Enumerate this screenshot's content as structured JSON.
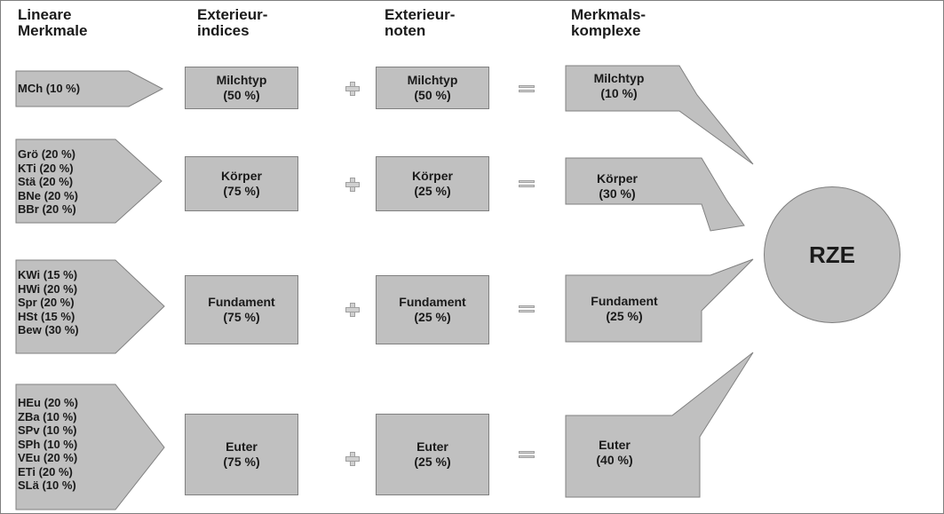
{
  "headers": {
    "lineare_merkmale": "Lineare\nMerkmale",
    "exterieur_indices": "Exterieur-\nindices",
    "exterieur_noten": "Exterieur-\nnoten",
    "merkmals_komplexe": "Merkmals-\nkomplexe"
  },
  "rows": [
    {
      "features": "MCh (10 %)",
      "index": "Milchtyp\n(50 %)",
      "note": "Milchtyp\n(50 %)",
      "complex": "Milchtyp\n(10 %)"
    },
    {
      "features": "Grö  (20 %)\nKTi   (20 %)\nStä   (20 %)\nBNe (20 %)\nBBr  (20 %)",
      "index": "Körper\n(75 %)",
      "note": "Körper\n(25 %)",
      "complex": "Körper\n(30 %)"
    },
    {
      "features": "KWi (15 %)\nHWi (20 %)\nSpr   (20 %)\nHSt  (15 %)\nBew (30 %)",
      "index": "Fundament\n(75 %)",
      "note": "Fundament\n(25 %)",
      "complex": "Fundament\n(25 %)"
    },
    {
      "features": "HEu (20 %)\nZBa  (10 %)\nSPv  (10 %)\nSPh  (10 %)\nVEu (20 %)\nETi   (20 %)\nSLä  (10 %)",
      "index": "Euter\n(75 %)",
      "note": "Euter\n(25 %)",
      "complex": "Euter\n(40 %)"
    }
  ],
  "result": "RZE",
  "colors": {
    "fill": "#c0c0c0",
    "stroke": "#808080"
  },
  "icons": {
    "plus": "plus-icon",
    "equals": "equals-icon"
  }
}
